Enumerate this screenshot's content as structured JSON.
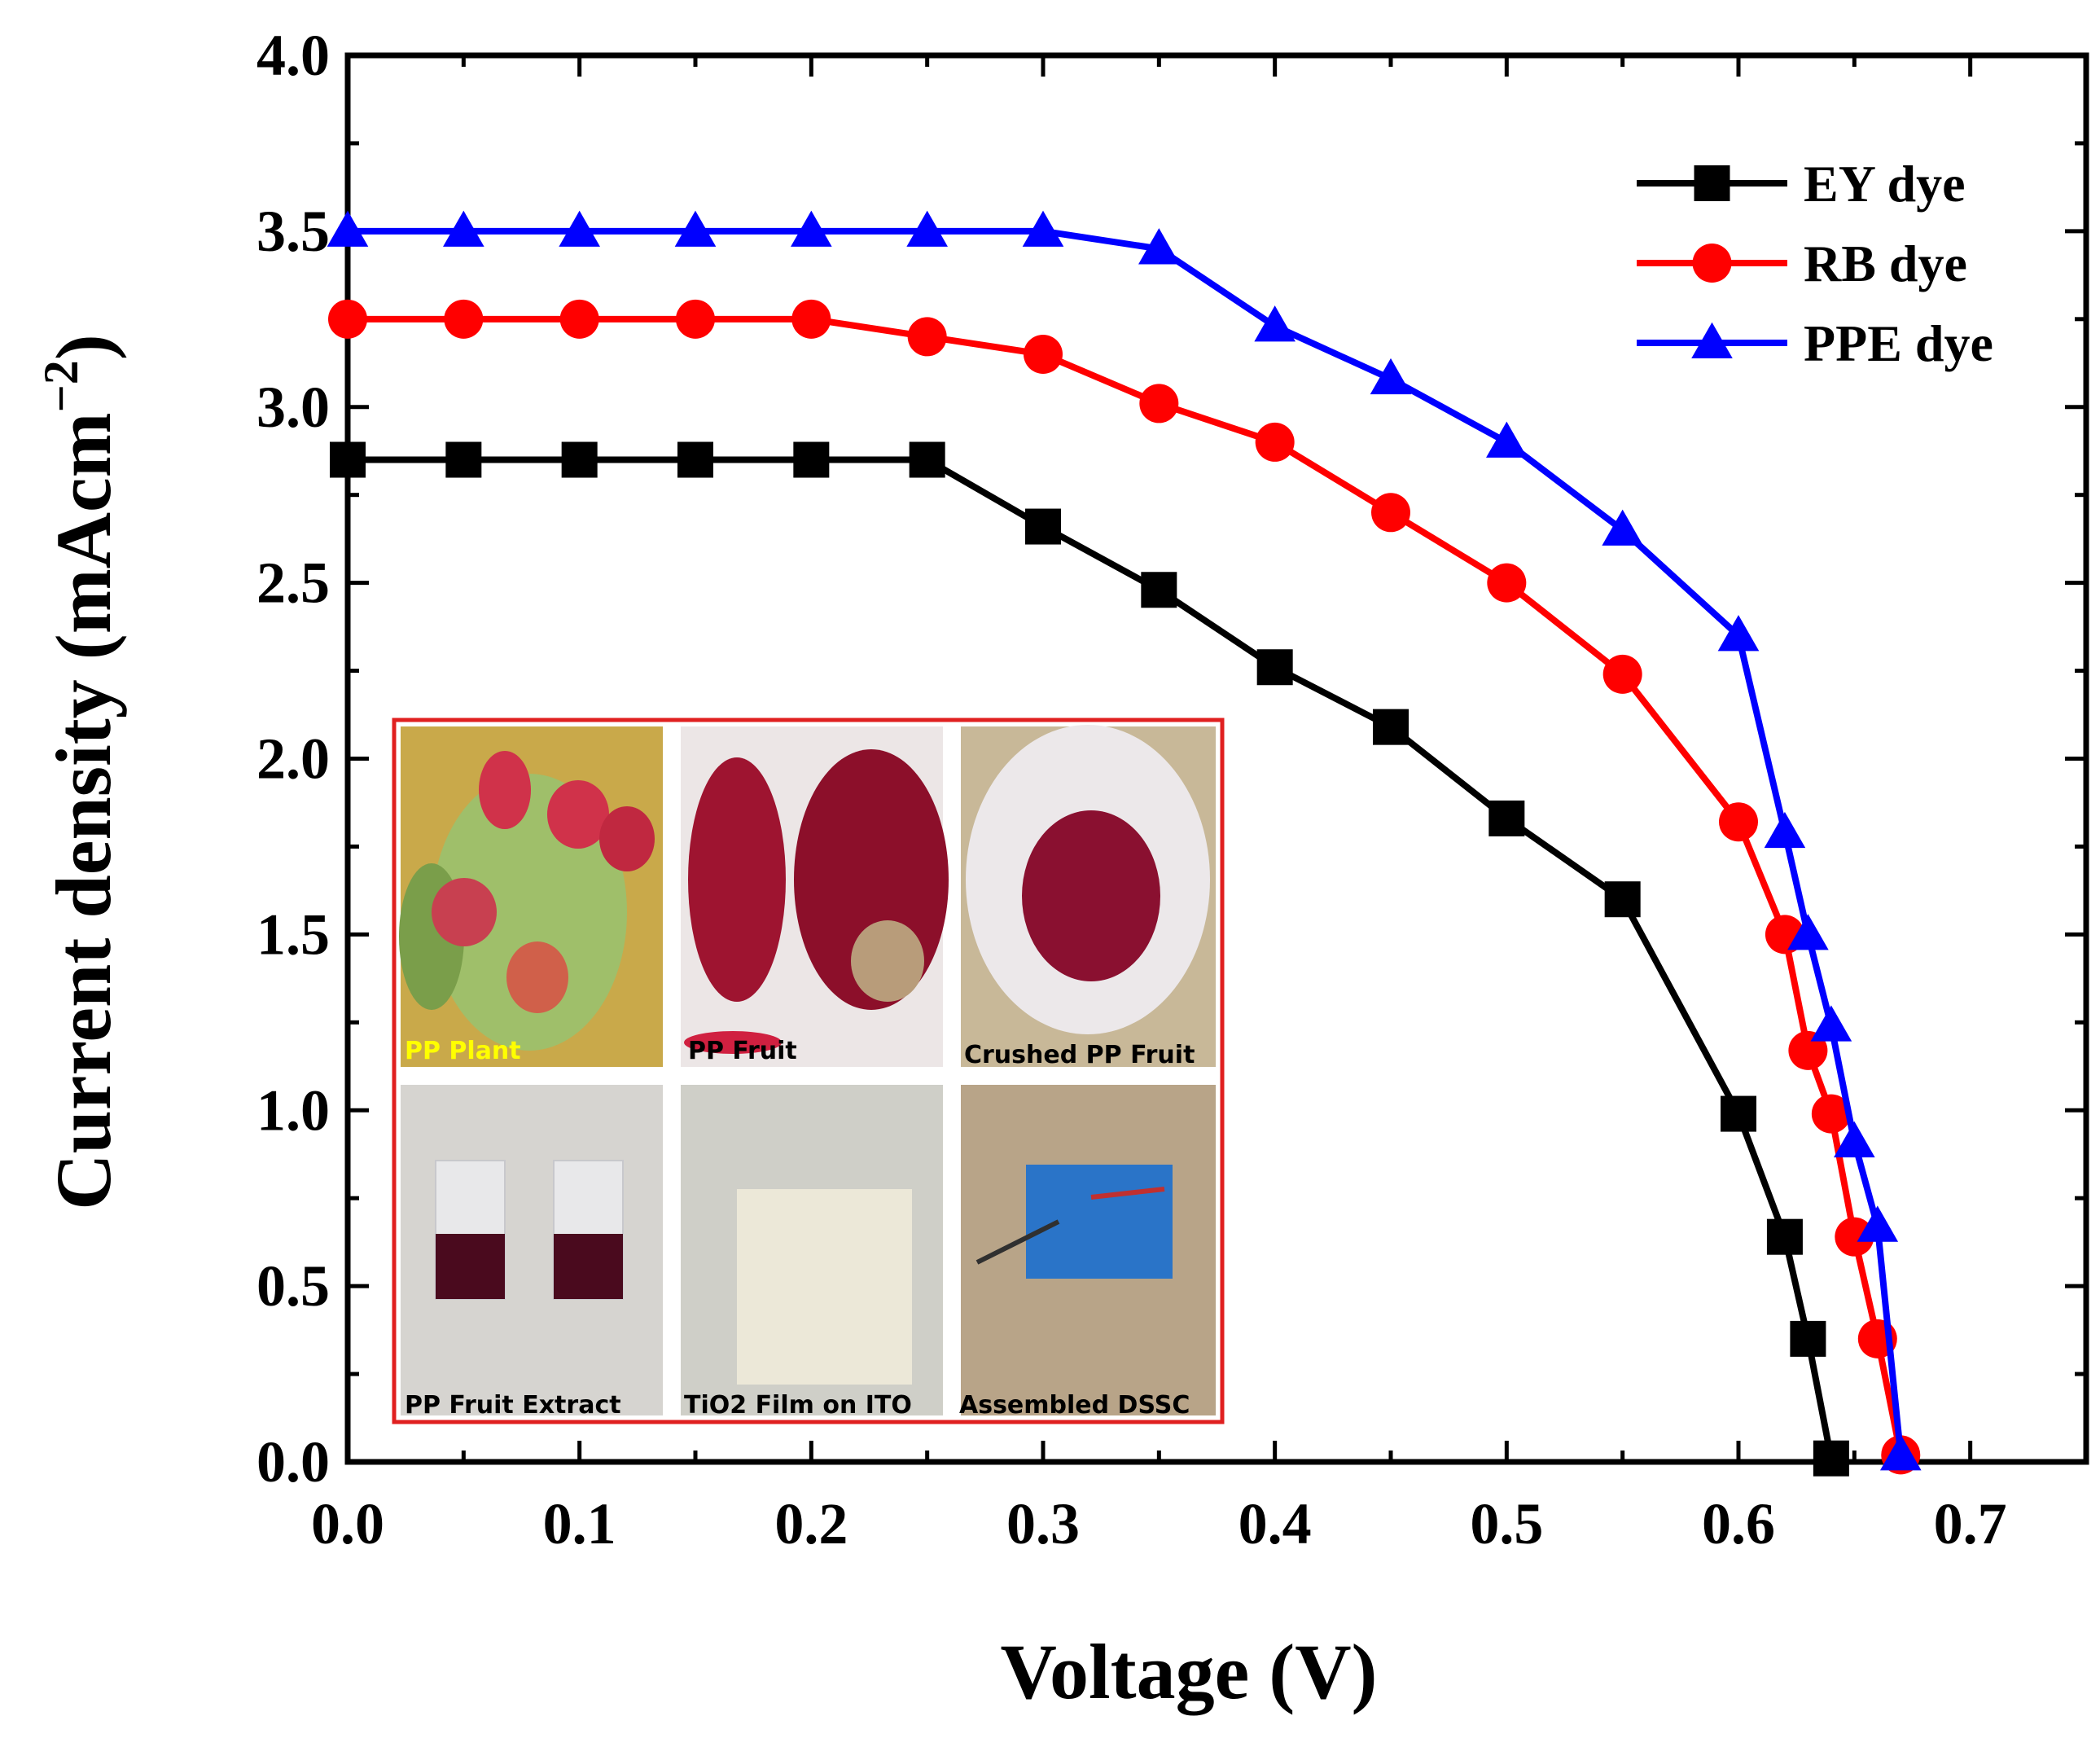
{
  "chart_data": {
    "type": "line",
    "title": "",
    "xlabel": "Voltage (V)",
    "ylabel_main": "Current density (mAcm",
    "ylabel_sup": "−2",
    "ylabel_close": ")",
    "xlim": [
      0.0,
      0.75
    ],
    "ylim": [
      0.0,
      4.0
    ],
    "x_ticks": [
      "0.0",
      "0.1",
      "0.2",
      "0.3",
      "0.4",
      "0.5",
      "0.6",
      "0.7"
    ],
    "y_ticks": [
      "0.0",
      "0.5",
      "1.0",
      "1.5",
      "2.0",
      "2.5",
      "3.0",
      "3.5",
      "4.0"
    ],
    "legend_position": "top-right",
    "series": [
      {
        "name": "EY dye",
        "color": "#000000",
        "marker": "square",
        "x": [
          0.0,
          0.05,
          0.1,
          0.15,
          0.2,
          0.25,
          0.3,
          0.35,
          0.4,
          0.45,
          0.5,
          0.55,
          0.6,
          0.62,
          0.63,
          0.64
        ],
        "y": [
          2.85,
          2.85,
          2.85,
          2.85,
          2.85,
          2.85,
          2.66,
          2.48,
          2.26,
          2.09,
          1.83,
          1.6,
          0.99,
          0.64,
          0.35,
          0.01
        ]
      },
      {
        "name": "RB dye",
        "color": "#ff0000",
        "marker": "circle",
        "x": [
          0.0,
          0.05,
          0.1,
          0.15,
          0.2,
          0.25,
          0.3,
          0.35,
          0.4,
          0.45,
          0.5,
          0.55,
          0.6,
          0.62,
          0.63,
          0.64,
          0.65,
          0.66,
          0.67
        ],
        "y": [
          3.25,
          3.25,
          3.25,
          3.25,
          3.25,
          3.2,
          3.15,
          3.01,
          2.9,
          2.7,
          2.5,
          2.24,
          1.82,
          1.5,
          1.17,
          0.99,
          0.64,
          0.35,
          0.02
        ]
      },
      {
        "name": "PPE dye",
        "color": "#0000ff",
        "marker": "triangle",
        "x": [
          0.0,
          0.05,
          0.1,
          0.15,
          0.2,
          0.25,
          0.3,
          0.35,
          0.4,
          0.45,
          0.5,
          0.55,
          0.6,
          0.62,
          0.63,
          0.64,
          0.65,
          0.66,
          0.67
        ],
        "y": [
          3.5,
          3.5,
          3.5,
          3.5,
          3.5,
          3.5,
          3.5,
          3.45,
          3.23,
          3.08,
          2.9,
          2.65,
          2.35,
          1.79,
          1.5,
          1.24,
          0.91,
          0.67,
          0.02
        ]
      }
    ]
  },
  "inset": {
    "border_color": "#e02020",
    "panels": [
      {
        "caption": "PP Plant",
        "caption_color": "#ffff00",
        "icon": "cactus-photo"
      },
      {
        "caption": "PP Fruit",
        "caption_color": "#000000",
        "icon": "fruit-photo"
      },
      {
        "caption": "Crushed PP Fruit",
        "caption_color": "#000000",
        "icon": "crushed-fruit-photo"
      },
      {
        "caption": "PP Fruit Extract",
        "caption_color": "#000000",
        "icon": "extract-vials-photo"
      },
      {
        "caption": "TiO2 Film on ITO",
        "caption_color": "#000000",
        "icon": "film-photo"
      },
      {
        "caption": "Assembled DSSC",
        "caption_color": "#000000",
        "icon": "dssc-device-photo"
      }
    ]
  }
}
